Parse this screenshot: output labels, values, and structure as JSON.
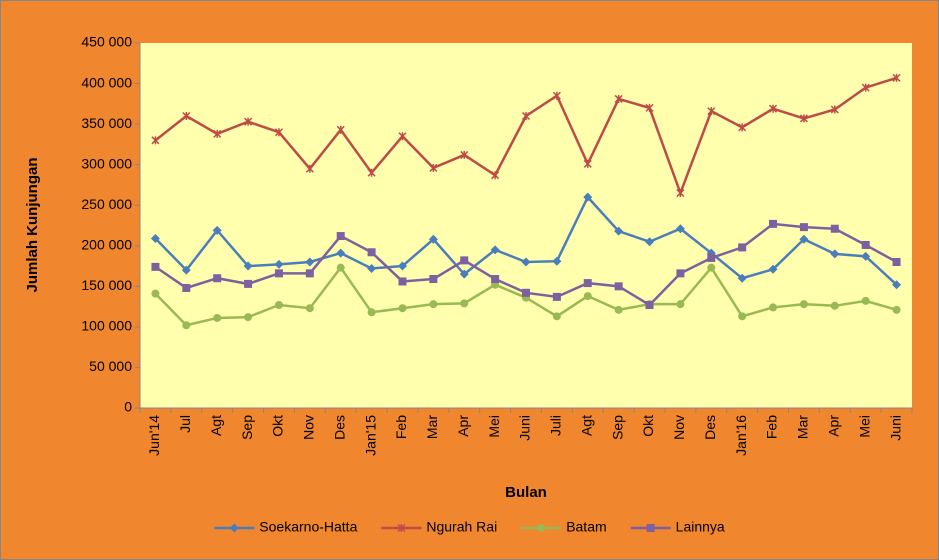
{
  "chart_data": {
    "type": "line",
    "x_label": "Bulan",
    "y_label": "Jumlah Kunjungan",
    "categories": [
      "Jun'14",
      "Jul",
      "Agt",
      "Sep",
      "Okt",
      "Nov",
      "Des",
      "Jan'15",
      "Feb",
      "Mar",
      "Apr",
      "Mei",
      "Juni",
      "Juli",
      "Agt",
      "Sep",
      "Okt",
      "Nov",
      "Des",
      "Jan'16",
      "Feb",
      "Mar",
      "Apr",
      "Mei",
      "Juni"
    ],
    "series": [
      {
        "name": "Soekarno-Hatta",
        "color": "#4a7ebb",
        "marker": "diamond",
        "values": [
          209000,
          170000,
          219000,
          175000,
          177000,
          180000,
          191000,
          172000,
          175000,
          208000,
          165000,
          195000,
          180000,
          181000,
          260000,
          218000,
          205000,
          221000,
          191000,
          160000,
          171000,
          208000,
          190000,
          187000,
          152000
        ]
      },
      {
        "name": "Ngurah Rai",
        "color": "#be4b48",
        "marker": "x",
        "values": [
          330000,
          360000,
          338000,
          353000,
          340000,
          295000,
          343000,
          290000,
          335000,
          296000,
          312000,
          287000,
          360000,
          385000,
          301000,
          381000,
          370000,
          265000,
          366000,
          346000,
          369000,
          357000,
          368000,
          395000,
          407000
        ]
      },
      {
        "name": "Batam",
        "color": "#98b954",
        "marker": "circle",
        "values": [
          141000,
          102000,
          111000,
          112000,
          127000,
          123000,
          173000,
          118000,
          123000,
          128000,
          129000,
          152000,
          136000,
          113000,
          138000,
          121000,
          128000,
          128000,
          173000,
          113000,
          124000,
          128000,
          126000,
          132000,
          121000
        ]
      },
      {
        "name": "Lainnya",
        "color": "#7d60a0",
        "marker": "square",
        "values": [
          174000,
          148000,
          160000,
          153000,
          166000,
          166000,
          212000,
          192000,
          156000,
          159000,
          182000,
          159000,
          142000,
          137000,
          154000,
          150000,
          127000,
          166000,
          185000,
          198000,
          227000,
          223000,
          221000,
          201000,
          180000
        ]
      }
    ],
    "ylim": [
      0,
      450000
    ],
    "yticks": [
      0,
      {
        "value": 50000,
        "label": "50 000"
      },
      {
        "value": 100000,
        "label": "100 000"
      },
      {
        "value": 150000,
        "label": "150 000"
      },
      {
        "value": 200000,
        "label": "200 000"
      },
      {
        "value": 250000,
        "label": "250 000"
      },
      {
        "value": 300000,
        "label": "300 000"
      },
      {
        "value": 350000,
        "label": "350 000"
      },
      {
        "value": 400000,
        "label": "400 000"
      },
      {
        "value": 450000,
        "label": "450 000"
      }
    ],
    "grid": false,
    "legend": "bottom"
  }
}
